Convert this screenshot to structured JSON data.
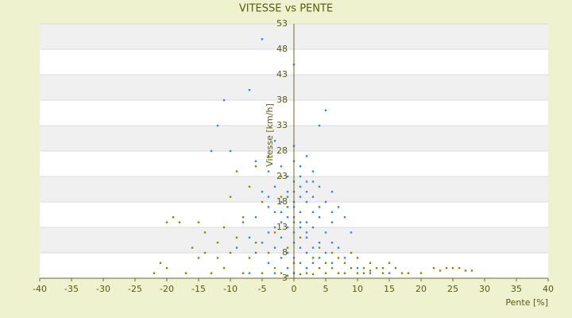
{
  "chart_data": {
    "type": "scatter",
    "title": "VITESSE vs PENTE",
    "x_label": "Pente [%]",
    "y_label": "Vitesse [km/h]",
    "xlim": [
      -40,
      40
    ],
    "xticks": [
      -40,
      -35,
      -30,
      -25,
      -20,
      -15,
      -10,
      -5,
      0,
      5,
      10,
      15,
      20,
      25,
      30,
      35,
      40
    ],
    "ylim": [
      3,
      53
    ],
    "yticks": [
      3,
      8,
      13,
      18,
      23,
      28,
      33,
      38,
      43,
      48,
      53
    ],
    "grid": true,
    "series": [
      {
        "color": "#3a86d4",
        "x": [
          -5,
          0,
          -11,
          -7,
          5,
          -12,
          4,
          -13,
          -10,
          -3,
          0,
          2,
          -6,
          -4,
          -2,
          1,
          3,
          -1,
          0,
          2,
          4,
          -3,
          -5,
          6,
          -1,
          1,
          3,
          -2,
          0,
          2,
          5,
          -4,
          7,
          -1,
          1,
          3,
          -3,
          0,
          4,
          -6,
          8,
          -2,
          2,
          6,
          -8,
          1,
          -1,
          3,
          -4,
          5,
          0,
          9,
          -7,
          2,
          -2,
          4,
          6,
          -5,
          0,
          1,
          -3,
          3,
          7,
          -9,
          -1,
          2,
          5,
          -6,
          0,
          4,
          -2,
          8,
          1,
          -4,
          3,
          6,
          -1,
          2,
          0,
          -3,
          10,
          12,
          15,
          -7,
          1,
          -1,
          2,
          0,
          1,
          -2,
          3,
          -4,
          4,
          0,
          6,
          -3,
          2,
          0,
          1,
          -1
        ],
        "values": [
          50,
          45,
          38,
          40,
          36,
          33,
          33,
          28,
          28,
          30,
          29,
          27,
          26,
          24,
          25,
          25,
          24,
          23,
          22,
          22,
          21,
          21,
          20,
          20,
          20,
          19,
          19,
          18,
          18,
          18,
          18,
          17,
          17,
          17,
          16,
          16,
          16,
          15,
          15,
          15,
          15,
          14,
          14,
          14,
          14,
          13,
          13,
          13,
          12,
          12,
          12,
          12,
          11,
          11,
          11,
          10,
          10,
          10,
          10,
          9,
          9,
          9,
          9,
          9,
          8,
          8,
          8,
          8,
          7,
          7,
          7,
          7,
          6,
          6,
          6,
          6,
          5,
          5,
          4,
          4,
          5,
          4,
          4,
          4,
          21,
          19,
          20,
          17,
          14,
          16,
          22,
          19,
          17,
          26,
          16,
          13,
          12,
          20,
          23,
          15
        ]
      },
      {
        "color": "#8a8a00",
        "x": [
          -22,
          -21,
          -20,
          -20,
          -18,
          -17,
          -16,
          -15,
          -14,
          -14,
          -13,
          -12,
          -12,
          -11,
          -11,
          -10,
          -10,
          -9,
          -9,
          -8,
          -8,
          -7,
          -7,
          -6,
          -6,
          -5,
          -5,
          -4,
          -4,
          -3,
          -3,
          -2,
          -2,
          -1,
          -1,
          0,
          0,
          1,
          1,
          2,
          2,
          3,
          3,
          4,
          4,
          5,
          5,
          6,
          7,
          7,
          8,
          8,
          9,
          10,
          10,
          11,
          12,
          12,
          13,
          14,
          15,
          16,
          17,
          18,
          20,
          22,
          23,
          24,
          25,
          26,
          27,
          28,
          -19,
          -15,
          0,
          -2,
          6,
          11,
          14,
          9
        ],
        "values": [
          4,
          6,
          5,
          14,
          14,
          4,
          9,
          14,
          8,
          12,
          4,
          7,
          10,
          5,
          13,
          8,
          19,
          24,
          11,
          4,
          15,
          7,
          21,
          25,
          10,
          4,
          18,
          27,
          8,
          12,
          5,
          23,
          4,
          9,
          3.5,
          6,
          4,
          3.8,
          11,
          5,
          4,
          7,
          3.8,
          9,
          5,
          4,
          6,
          5,
          4,
          7,
          6,
          4,
          5,
          7,
          4,
          5,
          6,
          4.5,
          5,
          4,
          6,
          5,
          4,
          4,
          4,
          5,
          4.5,
          5,
          5,
          5,
          4.5,
          4.5,
          15,
          7,
          14,
          19,
          8,
          4,
          5,
          8
        ]
      }
    ]
  }
}
